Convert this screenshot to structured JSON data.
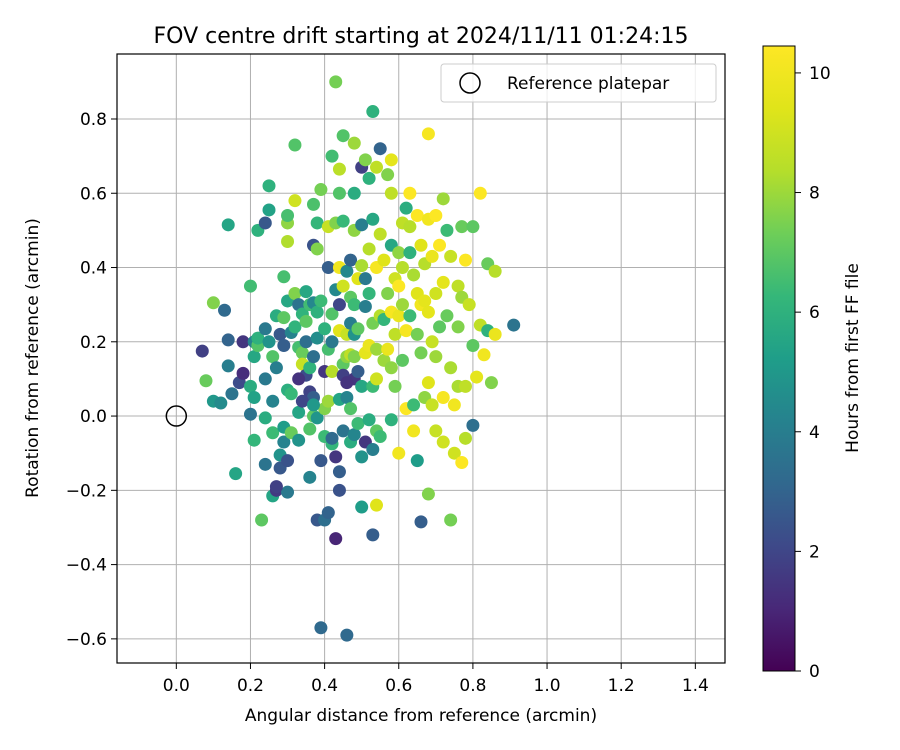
{
  "chart_data": {
    "type": "scatter",
    "title": "FOV centre drift starting at 2024/11/11 01:24:15",
    "xlabel": "Angular distance from reference (arcmin)",
    "ylabel": "Rotation from reference (arcmin)",
    "xlim": [
      -0.16,
      1.48
    ],
    "ylim": [
      -0.665,
      0.975
    ],
    "x_ticks": [
      0.0,
      0.2,
      0.4,
      0.6,
      0.8,
      1.0,
      1.2,
      1.4
    ],
    "x_tick_labels": [
      "0.0",
      "0.2",
      "0.4",
      "0.6",
      "0.8",
      "1.0",
      "1.2",
      "1.4"
    ],
    "y_ticks": [
      -0.6,
      -0.4,
      -0.2,
      0.0,
      0.2,
      0.4,
      0.6,
      0.8
    ],
    "y_tick_labels": [
      "−0.6",
      "−0.4",
      "−0.2",
      "0.0",
      "0.2",
      "0.4",
      "0.6",
      "0.8"
    ],
    "grid": true,
    "legend": {
      "label": "Reference platepar",
      "placement": "top-right"
    },
    "reference_point": [
      0.0,
      0.0
    ],
    "colorbar": {
      "label": "Hours from first FF file",
      "range": [
        0,
        10.45
      ],
      "ticks": [
        0,
        2,
        4,
        6,
        8,
        10
      ],
      "tick_labels": [
        "0",
        "2",
        "4",
        "6",
        "8",
        "10"
      ],
      "colormap": "viridis"
    },
    "points": [
      [
        0.07,
        0.175,
        1.8
      ],
      [
        0.08,
        0.095,
        7.2
      ],
      [
        0.1,
        0.305,
        7.6
      ],
      [
        0.1,
        0.04,
        5.0
      ],
      [
        0.12,
        0.035,
        4.5
      ],
      [
        0.13,
        0.285,
        3.2
      ],
      [
        0.14,
        0.515,
        5.5
      ],
      [
        0.14,
        0.205,
        3.0
      ],
      [
        0.14,
        0.135,
        4.0
      ],
      [
        0.15,
        0.06,
        3.6
      ],
      [
        0.16,
        -0.155,
        5.5
      ],
      [
        0.17,
        0.09,
        2.2
      ],
      [
        0.18,
        0.2,
        1.5
      ],
      [
        0.18,
        0.115,
        1.2
      ],
      [
        0.2,
        0.35,
        6.5
      ],
      [
        0.2,
        0.08,
        5.8
      ],
      [
        0.21,
        0.2,
        4.2
      ],
      [
        0.21,
        0.16,
        5.6
      ],
      [
        0.21,
        0.05,
        5.4
      ],
      [
        0.21,
        -0.065,
        6.2
      ],
      [
        0.22,
        0.5,
        6.0
      ],
      [
        0.22,
        0.19,
        6.8
      ],
      [
        0.22,
        0.21,
        6.0
      ],
      [
        0.23,
        -0.28,
        7.0
      ],
      [
        0.24,
        0.52,
        2.6
      ],
      [
        0.24,
        0.235,
        3.8
      ],
      [
        0.24,
        -0.005,
        5.8
      ],
      [
        0.24,
        -0.13,
        3.6
      ],
      [
        0.25,
        0.62,
        6.0
      ],
      [
        0.25,
        0.555,
        5.4
      ],
      [
        0.25,
        0.2,
        4.8
      ],
      [
        0.26,
        0.16,
        6.8
      ],
      [
        0.26,
        0.04,
        4.2
      ],
      [
        0.26,
        -0.045,
        6.4
      ],
      [
        0.26,
        -0.215,
        5.5
      ],
      [
        0.27,
        0.27,
        5.8
      ],
      [
        0.27,
        0.13,
        4.0
      ],
      [
        0.27,
        -0.2,
        1.6
      ],
      [
        0.28,
        0.22,
        2.6
      ],
      [
        0.28,
        -0.105,
        4.8
      ],
      [
        0.28,
        -0.14,
        2.6
      ],
      [
        0.29,
        0.375,
        6.6
      ],
      [
        0.29,
        0.265,
        7.0
      ],
      [
        0.29,
        0.19,
        2.8
      ],
      [
        0.29,
        -0.03,
        5.2
      ],
      [
        0.29,
        -0.07,
        4.2
      ],
      [
        0.3,
        0.52,
        7.8
      ],
      [
        0.3,
        0.54,
        6.6
      ],
      [
        0.3,
        0.47,
        8.3
      ],
      [
        0.3,
        0.31,
        5.6
      ],
      [
        0.3,
        0.07,
        5.9
      ],
      [
        0.3,
        -0.12,
        2.4
      ],
      [
        0.3,
        -0.205,
        3.8
      ],
      [
        0.31,
        0.225,
        4.2
      ],
      [
        0.31,
        0.06,
        6.3
      ],
      [
        0.31,
        -0.045,
        7.2
      ],
      [
        0.32,
        0.73,
        6.8
      ],
      [
        0.32,
        0.58,
        9.0
      ],
      [
        0.32,
        0.33,
        7.6
      ],
      [
        0.32,
        0.24,
        6.1
      ],
      [
        0.33,
        0.3,
        3.6
      ],
      [
        0.33,
        0.185,
        6.6
      ],
      [
        0.33,
        0.01,
        5.5
      ],
      [
        0.33,
        -0.065,
        4.8
      ],
      [
        0.34,
        0.17,
        7.2
      ],
      [
        0.34,
        0.14,
        8.8
      ],
      [
        0.34,
        0.275,
        6.1
      ],
      [
        0.35,
        0.335,
        5.6
      ],
      [
        0.35,
        0.255,
        7.0
      ],
      [
        0.35,
        0.2,
        3.4
      ],
      [
        0.35,
        0.11,
        2.2
      ],
      [
        0.36,
        0.3,
        6.5
      ],
      [
        0.36,
        0.13,
        6.1
      ],
      [
        0.36,
        0.065,
        1.9
      ],
      [
        0.36,
        -0.035,
        6.8
      ],
      [
        0.36,
        -0.165,
        4.2
      ],
      [
        0.37,
        0.46,
        2.4
      ],
      [
        0.37,
        0.57,
        6.7
      ],
      [
        0.37,
        0.305,
        4.4
      ],
      [
        0.37,
        0.16,
        3.4
      ],
      [
        0.37,
        0.05,
        2.8
      ],
      [
        0.37,
        0.0,
        7.0
      ],
      [
        0.38,
        0.52,
        6.2
      ],
      [
        0.38,
        0.45,
        7.6
      ],
      [
        0.38,
        0.28,
        6.0
      ],
      [
        0.38,
        0.21,
        4.6
      ],
      [
        0.38,
        -0.005,
        4.9
      ],
      [
        0.38,
        -0.28,
        2.6
      ],
      [
        0.39,
        0.61,
        7.4
      ],
      [
        0.39,
        0.31,
        6.4
      ],
      [
        0.39,
        -0.57,
        3.2
      ],
      [
        0.4,
        0.235,
        6.0
      ],
      [
        0.4,
        0.12,
        1.5
      ],
      [
        0.4,
        0.02,
        7.6
      ],
      [
        0.4,
        -0.28,
        3.4
      ],
      [
        0.4,
        -0.055,
        6.4
      ],
      [
        0.41,
        0.51,
        8.8
      ],
      [
        0.41,
        0.4,
        2.8
      ],
      [
        0.41,
        0.18,
        6.6
      ],
      [
        0.41,
        0.04,
        8.0
      ],
      [
        0.41,
        -0.26,
        3.0
      ],
      [
        0.42,
        0.7,
        6.5
      ],
      [
        0.42,
        0.275,
        6.8
      ],
      [
        0.42,
        0.2,
        3.8
      ],
      [
        0.42,
        0.12,
        8.4
      ],
      [
        0.42,
        -0.075,
        6.2
      ],
      [
        0.42,
        -0.06,
        3.2
      ],
      [
        0.43,
        0.9,
        7.4
      ],
      [
        0.43,
        0.52,
        7.6
      ],
      [
        0.43,
        0.34,
        4.4
      ],
      [
        0.43,
        -0.11,
        1.5
      ],
      [
        0.43,
        -0.33,
        1.0
      ],
      [
        0.44,
        0.665,
        8.5
      ],
      [
        0.44,
        0.6,
        6.8
      ],
      [
        0.44,
        0.4,
        10.0
      ],
      [
        0.44,
        0.23,
        9.5
      ],
      [
        0.44,
        0.045,
        5.5
      ],
      [
        0.44,
        -0.15,
        2.8
      ],
      [
        0.44,
        -0.2,
        2.4
      ],
      [
        0.45,
        0.755,
        6.8
      ],
      [
        0.45,
        0.525,
        6.3
      ],
      [
        0.45,
        0.35,
        9.0
      ],
      [
        0.45,
        0.14,
        7.0
      ],
      [
        0.45,
        0.11,
        1.8
      ],
      [
        0.45,
        -0.04,
        3.6
      ],
      [
        0.46,
        0.39,
        4.4
      ],
      [
        0.46,
        0.22,
        8.8
      ],
      [
        0.46,
        0.16,
        7.8
      ],
      [
        0.46,
        0.05,
        4.2
      ],
      [
        0.46,
        -0.59,
        3.2
      ],
      [
        0.47,
        0.42,
        3.0
      ],
      [
        0.47,
        0.32,
        7.0
      ],
      [
        0.47,
        0.25,
        4.0
      ],
      [
        0.47,
        0.165,
        8.6
      ],
      [
        0.47,
        0.02,
        6.8
      ],
      [
        0.47,
        -0.07,
        5.8
      ],
      [
        0.48,
        0.735,
        8.0
      ],
      [
        0.48,
        0.6,
        5.8
      ],
      [
        0.48,
        0.5,
        7.8
      ],
      [
        0.48,
        0.3,
        6.4
      ],
      [
        0.48,
        0.22,
        4.8
      ],
      [
        0.48,
        0.16,
        7.6
      ],
      [
        0.48,
        0.1,
        1.5
      ],
      [
        0.48,
        -0.05,
        4.3
      ],
      [
        0.49,
        0.37,
        9.4
      ],
      [
        0.49,
        0.235,
        7.0
      ],
      [
        0.49,
        0.12,
        2.8
      ],
      [
        0.49,
        -0.02,
        6.4
      ],
      [
        0.5,
        0.67,
        1.8
      ],
      [
        0.5,
        0.515,
        4.0
      ],
      [
        0.5,
        0.405,
        8.2
      ],
      [
        0.5,
        0.08,
        5.6
      ],
      [
        0.5,
        -0.245,
        5.2
      ],
      [
        0.51,
        0.69,
        7.6
      ],
      [
        0.51,
        0.295,
        4.0
      ],
      [
        0.51,
        0.17,
        9.6
      ],
      [
        0.51,
        -0.07,
        1.5
      ],
      [
        0.52,
        0.64,
        6.0
      ],
      [
        0.52,
        0.45,
        8.4
      ],
      [
        0.52,
        0.33,
        6.2
      ],
      [
        0.52,
        0.19,
        9.8
      ],
      [
        0.52,
        -0.01,
        5.8
      ],
      [
        0.53,
        0.82,
        6.0
      ],
      [
        0.53,
        0.53,
        5.6
      ],
      [
        0.53,
        0.25,
        7.4
      ],
      [
        0.53,
        0.08,
        6.4
      ],
      [
        0.53,
        -0.09,
        4.0
      ],
      [
        0.53,
        -0.32,
        2.8
      ],
      [
        0.54,
        0.67,
        8.6
      ],
      [
        0.54,
        0.4,
        10.2
      ],
      [
        0.54,
        0.18,
        8.0
      ],
      [
        0.54,
        0.1,
        9.0
      ],
      [
        0.54,
        -0.04,
        7.0
      ],
      [
        0.54,
        -0.24,
        9.4
      ],
      [
        0.55,
        0.72,
        3.0
      ],
      [
        0.55,
        0.49,
        8.6
      ],
      [
        0.55,
        0.27,
        8.4
      ],
      [
        0.55,
        -0.055,
        6.4
      ],
      [
        0.56,
        0.42,
        9.4
      ],
      [
        0.56,
        0.26,
        6.2
      ],
      [
        0.56,
        0.15,
        8.0
      ],
      [
        0.57,
        0.65,
        7.6
      ],
      [
        0.57,
        0.33,
        7.6
      ],
      [
        0.57,
        0.18,
        9.8
      ],
      [
        0.58,
        0.69,
        9.6
      ],
      [
        0.58,
        0.6,
        8.6
      ],
      [
        0.58,
        0.46,
        5.6
      ],
      [
        0.58,
        0.28,
        10.2
      ],
      [
        0.58,
        0.13,
        7.8
      ],
      [
        0.59,
        0.37,
        9.0
      ],
      [
        0.59,
        0.22,
        8.6
      ],
      [
        0.59,
        0.08,
        7.4
      ],
      [
        0.6,
        0.44,
        7.8
      ],
      [
        0.6,
        0.35,
        10.4
      ],
      [
        0.6,
        0.27,
        9.8
      ],
      [
        0.6,
        -0.1,
        10.0
      ],
      [
        0.61,
        0.52,
        8.6
      ],
      [
        0.61,
        0.4,
        8.4
      ],
      [
        0.61,
        0.3,
        8.0
      ],
      [
        0.61,
        0.15,
        7.0
      ],
      [
        0.62,
        0.56,
        5.8
      ],
      [
        0.62,
        0.23,
        10.2
      ],
      [
        0.62,
        0.02,
        10.4
      ],
      [
        0.63,
        0.6,
        10.4
      ],
      [
        0.63,
        0.51,
        8.4
      ],
      [
        0.63,
        0.44,
        6.0
      ],
      [
        0.63,
        0.27,
        6.4
      ],
      [
        0.64,
        0.38,
        8.2
      ],
      [
        0.64,
        0.03,
        6.4
      ],
      [
        0.64,
        -0.04,
        10.0
      ],
      [
        0.65,
        0.54,
        10.4
      ],
      [
        0.65,
        0.33,
        9.4
      ],
      [
        0.65,
        0.22,
        7.4
      ],
      [
        0.65,
        -0.12,
        5.2
      ],
      [
        0.66,
        0.46,
        9.4
      ],
      [
        0.66,
        0.3,
        10.0
      ],
      [
        0.66,
        0.17,
        7.4
      ],
      [
        0.66,
        -0.285,
        2.8
      ],
      [
        0.67,
        0.41,
        8.4
      ],
      [
        0.67,
        0.31,
        9.6
      ],
      [
        0.67,
        0.05,
        7.8
      ],
      [
        0.68,
        0.76,
        10.2
      ],
      [
        0.68,
        0.53,
        10.0
      ],
      [
        0.68,
        0.28,
        9.6
      ],
      [
        0.68,
        0.09,
        9.4
      ],
      [
        0.68,
        -0.21,
        7.6
      ],
      [
        0.69,
        0.43,
        9.8
      ],
      [
        0.69,
        0.2,
        8.8
      ],
      [
        0.69,
        0.03,
        8.8
      ],
      [
        0.7,
        0.54,
        10.4
      ],
      [
        0.7,
        0.33,
        9.0
      ],
      [
        0.7,
        0.16,
        8.0
      ],
      [
        0.7,
        -0.04,
        8.8
      ],
      [
        0.71,
        0.46,
        10.4
      ],
      [
        0.71,
        0.24,
        7.0
      ],
      [
        0.72,
        0.585,
        8.0
      ],
      [
        0.72,
        0.36,
        9.6
      ],
      [
        0.72,
        0.05,
        10.2
      ],
      [
        0.72,
        -0.07,
        9.0
      ],
      [
        0.73,
        0.5,
        6.4
      ],
      [
        0.73,
        0.27,
        7.2
      ],
      [
        0.74,
        0.43,
        8.8
      ],
      [
        0.74,
        0.13,
        8.2
      ],
      [
        0.74,
        -0.28,
        7.4
      ],
      [
        0.75,
        0.03,
        10.0
      ],
      [
        0.75,
        -0.1,
        9.0
      ],
      [
        0.76,
        0.35,
        8.6
      ],
      [
        0.76,
        0.24,
        7.6
      ],
      [
        0.76,
        0.08,
        8.2
      ],
      [
        0.77,
        0.51,
        7.2
      ],
      [
        0.77,
        0.32,
        8.0
      ],
      [
        0.77,
        -0.125,
        10.4
      ],
      [
        0.78,
        0.42,
        10.4
      ],
      [
        0.78,
        0.08,
        8.6
      ],
      [
        0.78,
        -0.06,
        8.4
      ],
      [
        0.79,
        0.3,
        8.8
      ],
      [
        0.8,
        0.51,
        7.0
      ],
      [
        0.8,
        0.19,
        7.0
      ],
      [
        0.8,
        -0.025,
        3.4
      ],
      [
        0.81,
        0.105,
        9.6
      ],
      [
        0.82,
        0.6,
        10.4
      ],
      [
        0.82,
        0.245,
        8.6
      ],
      [
        0.83,
        0.165,
        10.0
      ],
      [
        0.84,
        0.41,
        7.2
      ],
      [
        0.84,
        0.23,
        6.0
      ],
      [
        0.85,
        0.09,
        7.6
      ],
      [
        0.86,
        0.22,
        9.8
      ],
      [
        0.86,
        0.39,
        8.4
      ],
      [
        0.91,
        0.245,
        3.6
      ],
      [
        0.2,
        0.005,
        3.6
      ],
      [
        0.24,
        0.1,
        3.8
      ],
      [
        0.34,
        0.04,
        2.0
      ],
      [
        0.39,
        -0.12,
        2.6
      ],
      [
        0.46,
        0.09,
        1.4
      ],
      [
        0.27,
        -0.19,
        1.8
      ],
      [
        0.33,
        0.1,
        1.4
      ],
      [
        0.37,
        0.03,
        5.0
      ],
      [
        0.51,
        0.37,
        3.8
      ],
      [
        0.5,
        -0.11,
        4.8
      ],
      [
        0.58,
        -0.01,
        6.0
      ],
      [
        0.44,
        0.3,
        2.0
      ]
    ]
  }
}
